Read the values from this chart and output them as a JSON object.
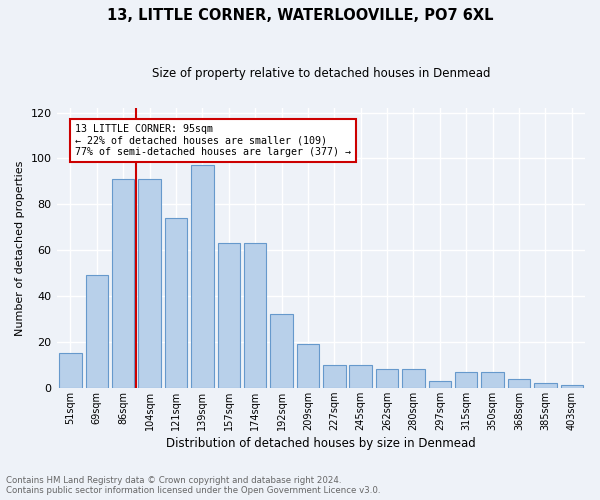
{
  "title": "13, LITTLE CORNER, WATERLOOVILLE, PO7 6XL",
  "subtitle": "Size of property relative to detached houses in Denmead",
  "xlabel": "Distribution of detached houses by size in Denmead",
  "ylabel": "Number of detached properties",
  "categories": [
    "51sqm",
    "69sqm",
    "86sqm",
    "104sqm",
    "121sqm",
    "139sqm",
    "157sqm",
    "174sqm",
    "192sqm",
    "209sqm",
    "227sqm",
    "245sqm",
    "262sqm",
    "280sqm",
    "297sqm",
    "315sqm",
    "350sqm",
    "368sqm",
    "385sqm",
    "403sqm"
  ],
  "values": [
    15,
    49,
    91,
    91,
    74,
    97,
    63,
    63,
    32,
    19,
    10,
    10,
    8,
    8,
    3,
    7,
    7,
    4,
    2,
    1
  ],
  "bar_color": "#b8d0ea",
  "bar_edge_color": "#6699cc",
  "background_color": "#eef2f8",
  "grid_color": "#ffffff",
  "annotation_text": "13 LITTLE CORNER: 95sqm\n← 22% of detached houses are smaller (109)\n77% of semi-detached houses are larger (377) →",
  "annotation_box_color": "#cc0000",
  "red_line_x": 2.5,
  "ylim": [
    0,
    122
  ],
  "yticks": [
    0,
    20,
    40,
    60,
    80,
    100,
    120
  ],
  "footer_line1": "Contains HM Land Registry data © Crown copyright and database right 2024.",
  "footer_line2": "Contains public sector information licensed under the Open Government Licence v3.0."
}
